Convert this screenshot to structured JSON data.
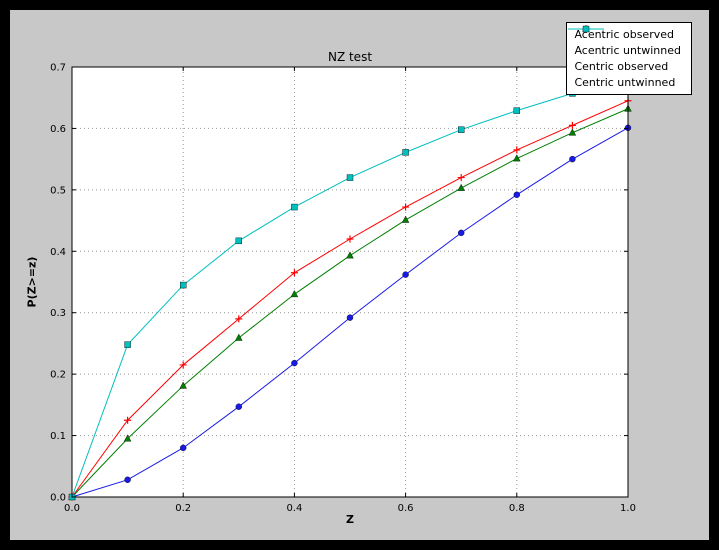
{
  "chart_data": {
    "type": "line",
    "title": "NZ test",
    "xlabel": "Z",
    "ylabel": "P(Z>=z)",
    "xlim": [
      0.0,
      1.0
    ],
    "ylim": [
      0.0,
      0.7
    ],
    "xticks": [
      "0.0",
      "0.2",
      "0.4",
      "0.6",
      "0.8",
      "1.0"
    ],
    "yticks": [
      "0.0",
      "0.1",
      "0.2",
      "0.3",
      "0.4",
      "0.5",
      "0.6",
      "0.7"
    ],
    "grid": true,
    "legend_position": "upper right",
    "x": [
      0.0,
      0.1,
      0.2,
      0.3,
      0.4,
      0.5,
      0.6,
      0.7,
      0.8,
      0.9,
      1.0
    ],
    "series": [
      {
        "name": "Acentric observed",
        "color": "#1a1ae6",
        "marker": "circle",
        "values": [
          0.0,
          0.028,
          0.08,
          0.147,
          0.218,
          0.292,
          0.362,
          0.43,
          0.492,
          0.55,
          0.601
        ]
      },
      {
        "name": "Acentric untwinned",
        "color": "#007f00",
        "marker": "triangle",
        "values": [
          0.0,
          0.095,
          0.181,
          0.259,
          0.33,
          0.393,
          0.451,
          0.503,
          0.551,
          0.593,
          0.632
        ]
      },
      {
        "name": "Centric observed",
        "color": "#ff0000",
        "marker": "plus",
        "values": [
          0.0,
          0.125,
          0.215,
          0.29,
          0.365,
          0.42,
          0.472,
          0.52,
          0.565,
          0.605,
          0.645
        ]
      },
      {
        "name": "Centric untwinned",
        "color": "#00bfbf",
        "marker": "square",
        "values": [
          0.0,
          0.248,
          0.345,
          0.417,
          0.472,
          0.52,
          0.561,
          0.598,
          0.629,
          0.657,
          0.683
        ]
      }
    ]
  },
  "colors": {
    "page_bg": "#000000",
    "figure_bg": "#c8c8c8",
    "plot_bg": "#ffffff",
    "frame": "#000000",
    "grid": "#999999",
    "legend_bg": "#ffffff",
    "legend_border": "#000000"
  }
}
